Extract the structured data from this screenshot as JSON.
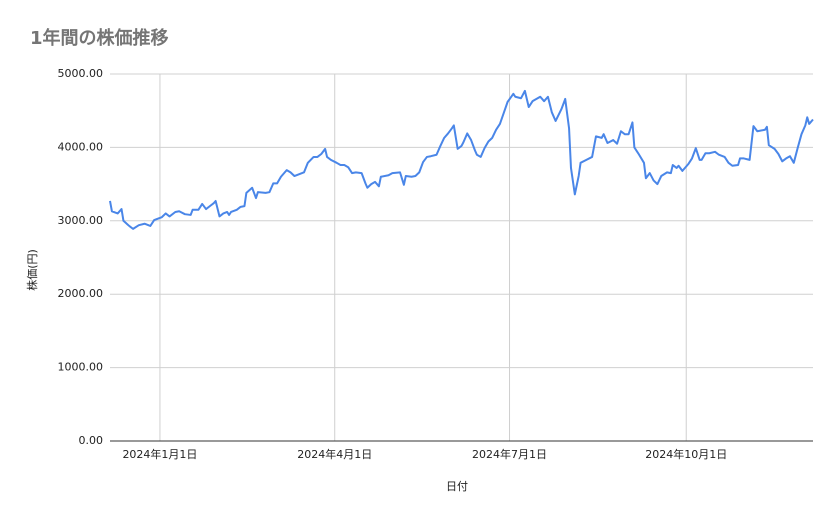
{
  "chart_data": {
    "type": "line",
    "title": "1年間の株価推移",
    "x_label": "日付",
    "y_label": "株価(円)",
    "x": [
      "2023-12-06",
      "2023-12-07",
      "2023-12-10",
      "2023-12-12",
      "2023-12-13",
      "2023-12-16",
      "2023-12-18",
      "2023-12-21",
      "2023-12-24",
      "2023-12-27",
      "2023-12-29",
      "2024-01-02",
      "2024-01-04",
      "2024-01-06",
      "2024-01-09",
      "2024-01-11",
      "2024-01-14",
      "2024-01-17",
      "2024-01-18",
      "2024-01-21",
      "2024-01-23",
      "2024-01-25",
      "2024-01-27",
      "2024-01-29",
      "2024-01-30",
      "2024-02-01",
      "2024-02-03",
      "2024-02-05",
      "2024-02-06",
      "2024-02-07",
      "2024-02-10",
      "2024-02-12",
      "2024-02-14",
      "2024-02-15",
      "2024-02-18",
      "2024-02-20",
      "2024-02-21",
      "2024-02-25",
      "2024-02-27",
      "2024-02-29",
      "2024-03-02",
      "2024-03-04",
      "2024-03-07",
      "2024-03-09",
      "2024-03-11",
      "2024-03-14",
      "2024-03-16",
      "2024-03-18",
      "2024-03-21",
      "2024-03-23",
      "2024-03-25",
      "2024-03-27",
      "2024-03-28",
      "2024-03-30",
      "2024-04-02",
      "2024-04-04",
      "2024-04-06",
      "2024-04-08",
      "2024-04-10",
      "2024-04-12",
      "2024-04-15",
      "2024-04-17",
      "2024-04-18",
      "2024-04-20",
      "2024-04-22",
      "2024-04-24",
      "2024-04-25",
      "2024-04-29",
      "2024-05-01",
      "2024-05-05",
      "2024-05-07",
      "2024-05-08",
      "2024-05-11",
      "2024-05-13",
      "2024-05-15",
      "2024-05-17",
      "2024-05-19",
      "2024-05-21",
      "2024-05-24",
      "2024-05-26",
      "2024-05-28",
      "2024-05-30",
      "2024-06-01",
      "2024-06-02",
      "2024-06-04",
      "2024-06-06",
      "2024-06-07",
      "2024-06-09",
      "2024-06-11",
      "2024-06-13",
      "2024-06-14",
      "2024-06-16",
      "2024-06-18",
      "2024-06-20",
      "2024-06-22",
      "2024-06-24",
      "2024-06-26",
      "2024-06-28",
      "2024-06-30",
      "2024-07-03",
      "2024-07-04",
      "2024-07-07",
      "2024-07-09",
      "2024-07-11",
      "2024-07-13",
      "2024-07-17",
      "2024-07-19",
      "2024-07-21",
      "2024-07-23",
      "2024-07-25",
      "2024-07-28",
      "2024-07-29",
      "2024-07-30",
      "2024-08-01",
      "2024-08-02",
      "2024-08-04",
      "2024-08-06",
      "2024-08-07",
      "2024-08-10",
      "2024-08-13",
      "2024-08-15",
      "2024-08-18",
      "2024-08-19",
      "2024-08-21",
      "2024-08-24",
      "2024-08-26",
      "2024-08-28",
      "2024-08-30",
      "2024-09-01",
      "2024-09-03",
      "2024-09-04",
      "2024-09-06",
      "2024-09-09",
      "2024-09-10",
      "2024-09-12",
      "2024-09-14",
      "2024-09-16",
      "2024-09-18",
      "2024-09-21",
      "2024-09-23",
      "2024-09-24",
      "2024-09-26",
      "2024-09-27",
      "2024-09-29",
      "2024-10-02",
      "2024-10-04",
      "2024-10-06",
      "2024-10-08",
      "2024-10-09",
      "2024-10-11",
      "2024-10-13",
      "2024-10-16",
      "2024-10-18",
      "2024-10-21",
      "2024-10-23",
      "2024-10-25",
      "2024-10-28",
      "2024-10-29",
      "2024-10-31",
      "2024-11-03",
      "2024-11-05",
      "2024-11-07",
      "2024-11-11",
      "2024-11-12",
      "2024-11-13",
      "2024-11-16",
      "2024-11-18",
      "2024-11-20",
      "2024-11-22",
      "2024-11-24",
      "2024-11-26",
      "2024-11-28",
      "2024-11-30",
      "2024-12-02",
      "2024-12-03",
      "2024-12-04",
      "2024-12-06"
    ],
    "series": [
      {
        "color": "#4a86e8",
        "values": [
          3270,
          3130,
          3100,
          3160,
          3000,
          2930,
          2890,
          2940,
          2960,
          2930,
          3010,
          3050,
          3100,
          3060,
          3120,
          3130,
          3090,
          3080,
          3150,
          3150,
          3230,
          3160,
          3200,
          3240,
          3270,
          3060,
          3100,
          3120,
          3080,
          3120,
          3150,
          3190,
          3200,
          3380,
          3450,
          3310,
          3390,
          3380,
          3390,
          3510,
          3510,
          3600,
          3690,
          3660,
          3610,
          3640,
          3660,
          3790,
          3870,
          3870,
          3910,
          3980,
          3870,
          3830,
          3790,
          3760,
          3760,
          3730,
          3650,
          3660,
          3650,
          3510,
          3450,
          3500,
          3530,
          3470,
          3600,
          3620,
          3650,
          3660,
          3490,
          3610,
          3600,
          3610,
          3660,
          3800,
          3870,
          3880,
          3900,
          4020,
          4130,
          4190,
          4260,
          4300,
          3980,
          4020,
          4070,
          4190,
          4100,
          3960,
          3900,
          3870,
          3990,
          4080,
          4130,
          4240,
          4320,
          4470,
          4620,
          4730,
          4690,
          4670,
          4770,
          4550,
          4630,
          4690,
          4630,
          4690,
          4480,
          4360,
          4520,
          4590,
          4660,
          4260,
          3720,
          3360,
          3610,
          3790,
          3830,
          3870,
          4150,
          4130,
          4180,
          4060,
          4100,
          4050,
          4220,
          4180,
          4180,
          4340,
          4000,
          3920,
          3790,
          3580,
          3650,
          3550,
          3500,
          3610,
          3660,
          3650,
          3760,
          3720,
          3750,
          3680,
          3770,
          3850,
          3990,
          3830,
          3830,
          3920,
          3920,
          3940,
          3900,
          3870,
          3790,
          3750,
          3760,
          3850,
          3850,
          3830,
          4290,
          4220,
          4240,
          4280,
          4030,
          3980,
          3910,
          3810,
          3850,
          3880,
          3790,
          3990,
          4180,
          4300,
          4410,
          4320,
          4380
        ]
      }
    ],
    "xlim": [
      "2023-12-06",
      "2024-12-06"
    ],
    "xticks": [
      {
        "value": "2024-01-01",
        "label": "2024年1月1日"
      },
      {
        "value": "2024-04-01",
        "label": "2024年4月1日"
      },
      {
        "value": "2024-07-01",
        "label": "2024年7月1日"
      },
      {
        "value": "2024-10-01",
        "label": "2024年10月1日"
      }
    ],
    "ylim": [
      0,
      5000
    ],
    "yticks": [
      {
        "value": 0,
        "label": "0.00"
      },
      {
        "value": 1000,
        "label": "1000.00"
      },
      {
        "value": 2000,
        "label": "2000.00"
      },
      {
        "value": 3000,
        "label": "3000.00"
      },
      {
        "value": 4000,
        "label": "4000.00"
      },
      {
        "value": 5000,
        "label": "5000.00"
      }
    ],
    "grid": true
  }
}
